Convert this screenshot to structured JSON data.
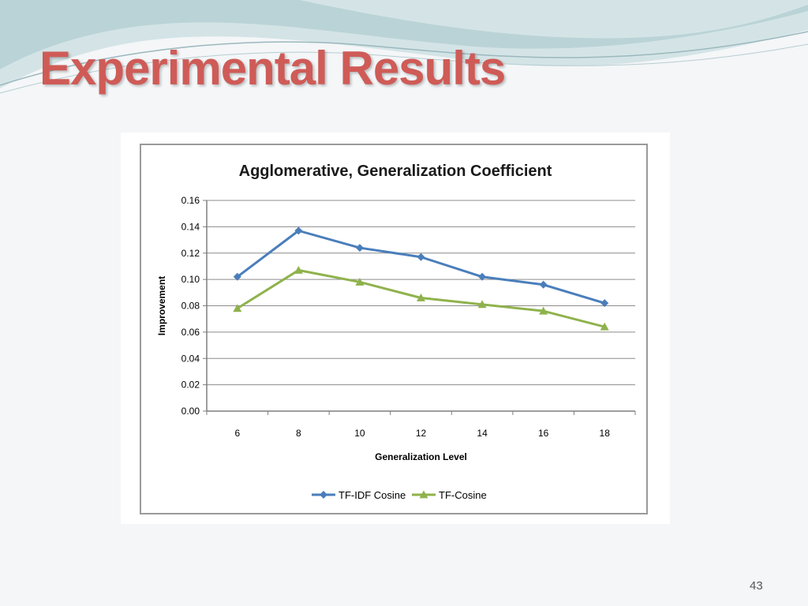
{
  "slide": {
    "title": "Experimental Results",
    "page_number": "43",
    "title_color": "#cf5b57"
  },
  "chart_data": {
    "type": "line",
    "title": "Agglomerative, Generalization Coefficient",
    "xlabel": "Generalization Level",
    "ylabel": "Improvement",
    "categories": [
      "6",
      "8",
      "10",
      "12",
      "14",
      "16",
      "18"
    ],
    "y_ticks": [
      "0.00",
      "0.02",
      "0.04",
      "0.06",
      "0.08",
      "0.10",
      "0.12",
      "0.14",
      "0.16"
    ],
    "ylim": [
      0,
      0.16
    ],
    "grid": true,
    "legend_position": "bottom",
    "series": [
      {
        "name": "TF-IDF Cosine",
        "values": [
          0.102,
          0.137,
          0.124,
          0.117,
          0.102,
          0.096,
          0.082
        ],
        "color": "#4a7ebb",
        "marker": "diamond"
      },
      {
        "name": "TF-Cosine",
        "values": [
          0.078,
          0.107,
          0.098,
          0.086,
          0.081,
          0.076,
          0.064
        ],
        "color": "#8fb24c",
        "marker": "triangle"
      }
    ]
  }
}
